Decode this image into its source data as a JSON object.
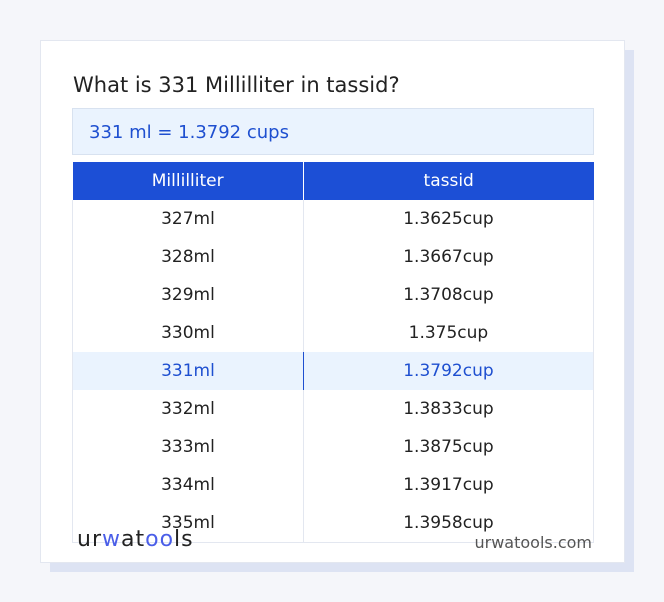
{
  "title": "What is 331 Millilliter in tassid?",
  "result": "331 ml = 1.3792 cups",
  "table": {
    "headers": [
      "Millilliter",
      "tassid"
    ],
    "rows": [
      [
        "327ml",
        "1.3625cup"
      ],
      [
        "328ml",
        "1.3667cup"
      ],
      [
        "329ml",
        "1.3708cup"
      ],
      [
        "330ml",
        "1.375cup"
      ],
      [
        "331ml",
        "1.3792cup"
      ],
      [
        "332ml",
        "1.3833cup"
      ],
      [
        "333ml",
        "1.3875cup"
      ],
      [
        "334ml",
        "1.3917cup"
      ],
      [
        "335ml",
        "1.3958cup"
      ]
    ],
    "highlighted_row": 4
  },
  "footer": {
    "logo": "urwatools",
    "site": "urwatools.com"
  },
  "colors": {
    "accent": "#1c4fd6",
    "highlight_bg": "#eaf3fe"
  }
}
